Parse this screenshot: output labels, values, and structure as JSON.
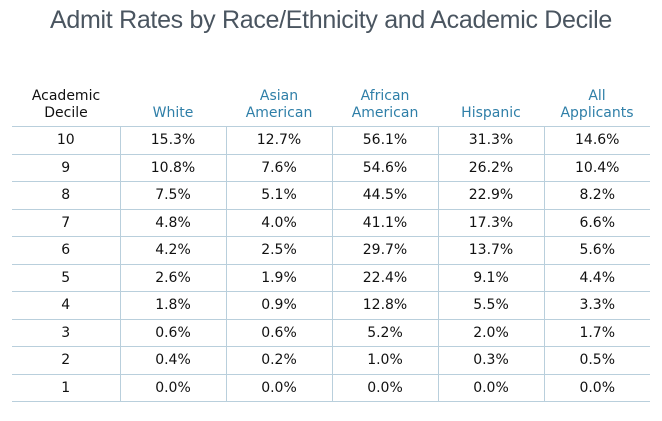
{
  "chart_data": {
    "type": "table",
    "title": "Admit Rates by Race/Ethnicity and Academic Decile",
    "columns": [
      {
        "key": "decile",
        "line1": "Academic",
        "line2": "Decile"
      },
      {
        "key": "white",
        "line1": "",
        "line2": "White"
      },
      {
        "key": "asian",
        "line1": "Asian",
        "line2": "American"
      },
      {
        "key": "african",
        "line1": "African",
        "line2": "American"
      },
      {
        "key": "hispanic",
        "line1": "",
        "line2": "Hispanic"
      },
      {
        "key": "all",
        "line1": "All",
        "line2": "Applicants"
      }
    ],
    "header_color": "#2f7fa8",
    "grid_color": "#b9cfdc",
    "rows": [
      [
        "10",
        "15.3%",
        "12.7%",
        "56.1%",
        "31.3%",
        "14.6%"
      ],
      [
        "9",
        "10.8%",
        "7.6%",
        "54.6%",
        "26.2%",
        "10.4%"
      ],
      [
        "8",
        "7.5%",
        "5.1%",
        "44.5%",
        "22.9%",
        "8.2%"
      ],
      [
        "7",
        "4.8%",
        "4.0%",
        "41.1%",
        "17.3%",
        "6.6%"
      ],
      [
        "6",
        "4.2%",
        "2.5%",
        "29.7%",
        "13.7%",
        "5.6%"
      ],
      [
        "5",
        "2.6%",
        "1.9%",
        "22.4%",
        "9.1%",
        "4.4%"
      ],
      [
        "4",
        "1.8%",
        "0.9%",
        "12.8%",
        "5.5%",
        "3.3%"
      ],
      [
        "3",
        "0.6%",
        "0.6%",
        "5.2%",
        "2.0%",
        "1.7%"
      ],
      [
        "2",
        "0.4%",
        "0.2%",
        "1.0%",
        "0.3%",
        "0.5%"
      ],
      [
        "1",
        "0.0%",
        "0.0%",
        "0.0%",
        "0.0%",
        "0.0%"
      ]
    ]
  }
}
